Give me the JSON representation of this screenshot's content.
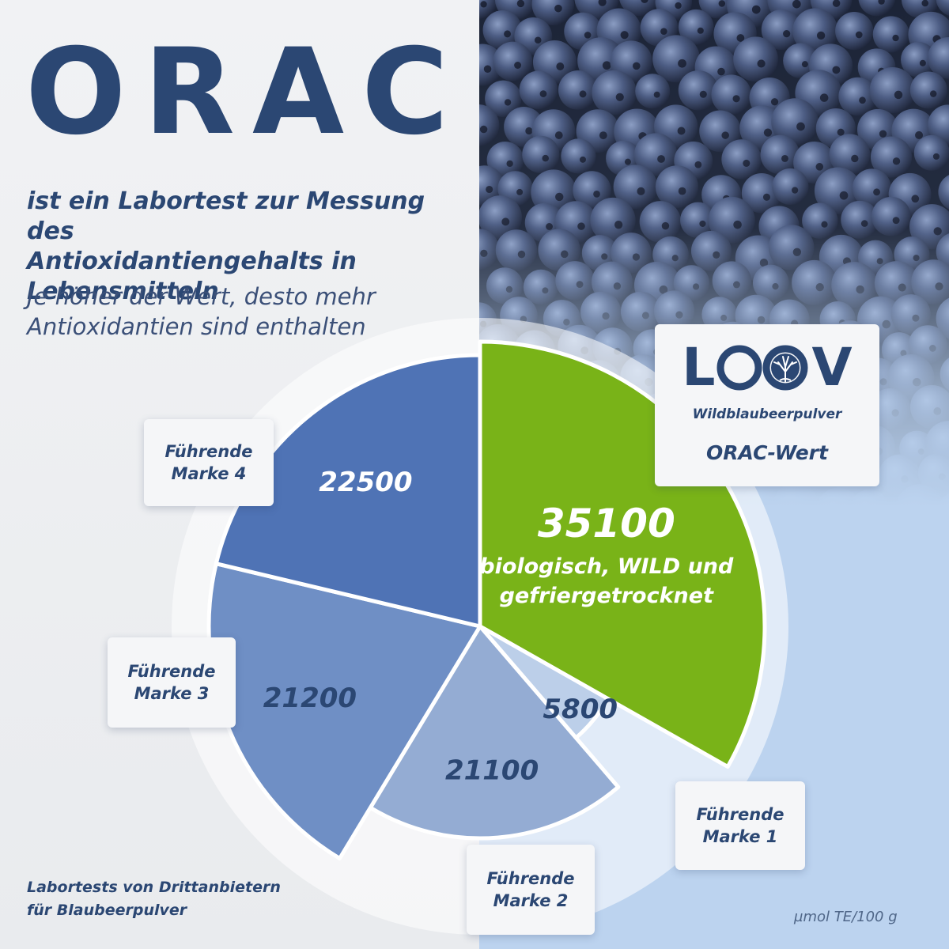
{
  "headline": "ORAC",
  "intro": {
    "bold_lines": [
      "ist ein Labortest zur Messung des",
      "Antioxidantiengehalts in",
      "Lebensmitteln"
    ],
    "light_lines": [
      "Je höher der Wert, desto mehr",
      "Antioxidantien sind enthalten"
    ]
  },
  "logo": {
    "letters": [
      "L",
      "V"
    ],
    "product": "Wildblaubeerpulver",
    "metric": "ORAC-Wert",
    "icon": "tree-of-life-icon"
  },
  "chart_data": {
    "type": "pie",
    "unit": "µmol TE/100 g",
    "slices": [
      {
        "name": "Wildblaubeerpulver",
        "value": 35100,
        "label": "35100",
        "sublabel": [
          "biologisch, WILD und",
          "gefriergetrocknet"
        ],
        "color": "#79b318"
      },
      {
        "name": "Führende Marke 1",
        "value": 5800,
        "label": "5800",
        "color": "#bccfe9"
      },
      {
        "name": "Führende Marke 2",
        "value": 21100,
        "label": "21100",
        "color": "#94acd3"
      },
      {
        "name": "Führende Marke 3",
        "value": 21200,
        "label": "21200",
        "color": "#6f8fc5"
      },
      {
        "name": "Führende Marke 4",
        "value": 22500,
        "label": "22500",
        "color": "#4f73b5"
      }
    ]
  },
  "brand_cards": [
    {
      "text": "Führende\nMarke 4"
    },
    {
      "text": "Führende\nMarke 3"
    },
    {
      "text": "Führende\nMarke 2"
    },
    {
      "text": "Führende\nMarke 1"
    }
  ],
  "footnote": [
    "Labortests von Drittanbietern",
    "für Blaubeerpulver"
  ],
  "unit_label": "µmol TE/100 g",
  "colors": {
    "brand_navy": "#2b4773",
    "accent_green": "#79b318",
    "right_panel": "#bcd3ef"
  }
}
